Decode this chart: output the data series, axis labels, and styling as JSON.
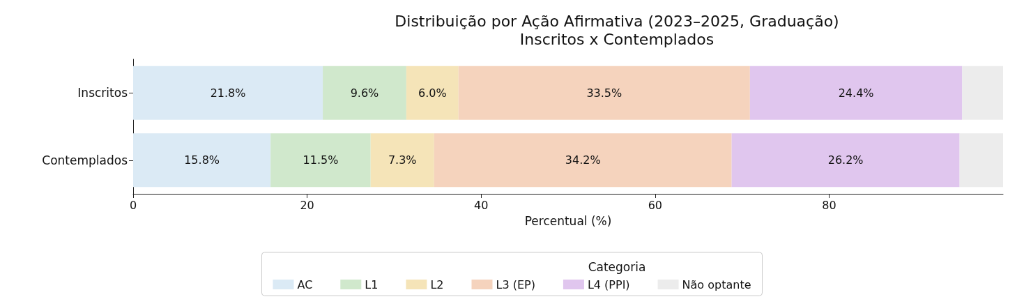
{
  "chart_data": {
    "type": "bar",
    "orientation": "horizontal",
    "stacked": true,
    "title": "Distribuição por Ação Afirmativa (2023–2025, Graduação)",
    "subtitle": "Inscritos x Contemplados",
    "xlabel": "Percentual (%)",
    "legend_title": "Categoria",
    "legend": "bottom",
    "categories": [
      "Inscritos",
      "Contemplados"
    ],
    "xlim": [
      0,
      100
    ],
    "xticks": [
      0,
      20,
      40,
      60,
      80
    ],
    "series": [
      {
        "name": "AC",
        "color": "#dbeaf5",
        "values": [
          21.8,
          15.8
        ],
        "value_labels": [
          "21.8%",
          "15.8%"
        ]
      },
      {
        "name": "L1",
        "color": "#d0e8cc",
        "values": [
          9.6,
          11.5
        ],
        "value_labels": [
          "9.6%",
          "11.5%"
        ]
      },
      {
        "name": "L2",
        "color": "#f5e4b8",
        "values": [
          6.0,
          7.3
        ],
        "value_labels": [
          "6.0%",
          "7.3%"
        ]
      },
      {
        "name": "L3 (EP)",
        "color": "#f5d3bd",
        "values": [
          33.5,
          34.2
        ],
        "value_labels": [
          "33.5%",
          "34.2%"
        ]
      },
      {
        "name": "L4 (PPI)",
        "color": "#e0c6ee",
        "values": [
          24.4,
          26.2
        ],
        "value_labels": [
          "24.4%",
          "26.2%"
        ]
      },
      {
        "name": "Não optante",
        "color": "#ececec",
        "values": [
          4.7,
          5.0
        ],
        "value_labels": [
          null,
          null
        ]
      }
    ]
  }
}
